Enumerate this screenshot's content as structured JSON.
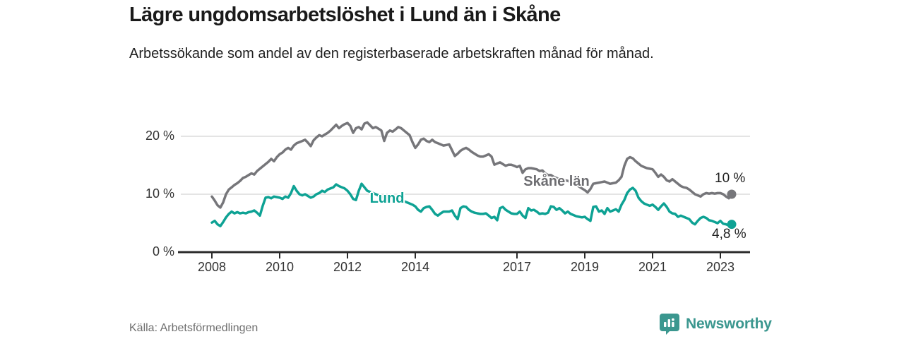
{
  "header": {
    "title": "Lägre ungdomsarbetslöshet i Lund än i Skåne",
    "subtitle": "Arbetssökande som andel av den registerbaserade arbetskraften månad för månad."
  },
  "footer": {
    "source": "Källa: Arbetsförmedlingen",
    "brand": "Newsworthy"
  },
  "colors": {
    "accent_teal": "#0ea294",
    "line_gray": "#76767a",
    "brand_teal": "#3b978f",
    "grid": "#dcdcdc",
    "axis": "#2b2b2b",
    "text_dark": "#1a1a1a",
    "text_muted": "#6e6e6e"
  },
  "chart_data": {
    "type": "line",
    "title": "Lägre ungdomsarbetslöshet i Lund än i Skåne",
    "subtitle": "Arbetssökande som andel av den registerbaserade arbetskraften månad för månad.",
    "unit": "%",
    "frequency": "monthly",
    "x_start": "2008-01",
    "x_end": "2023-05",
    "ylim": [
      0,
      24
    ],
    "grid": "horizontal",
    "legend": "direct-labels",
    "y_tick_labels": [
      "20 %",
      "10 %",
      "0 %"
    ],
    "y_tick_values": [
      20,
      10,
      0
    ],
    "x_tick_years": [
      2008,
      2010,
      2012,
      2014,
      2017,
      2019,
      2021,
      2023
    ],
    "x_tick_labels": [
      "2008",
      "2010",
      "2012",
      "2014",
      "2017",
      "2019",
      "2021",
      "2023"
    ],
    "series": [
      {
        "name": "Skåne län",
        "color": "#76767a",
        "end_label": "10 %",
        "end_value": 10,
        "values": [
          9.6,
          8.9,
          8.1,
          7.7,
          8.6,
          10.0,
          10.8,
          11.2,
          11.6,
          11.9,
          12.3,
          12.8,
          13.0,
          13.3,
          13.6,
          13.4,
          14.0,
          14.4,
          14.8,
          15.2,
          15.6,
          16.1,
          15.7,
          16.4,
          16.9,
          17.2,
          17.7,
          18.0,
          17.7,
          18.4,
          18.8,
          19.0,
          19.2,
          19.4,
          18.9,
          18.3,
          19.3,
          19.8,
          20.2,
          20.0,
          20.3,
          20.6,
          21.0,
          21.5,
          22.0,
          21.4,
          21.8,
          22.1,
          22.3,
          21.8,
          20.6,
          21.4,
          21.6,
          21.2,
          22.2,
          22.4,
          21.9,
          21.4,
          21.6,
          21.3,
          21.0,
          19.2,
          20.6,
          21.0,
          20.8,
          21.2,
          21.6,
          21.4,
          21.0,
          20.6,
          20.2,
          19.0,
          18.0,
          18.6,
          19.4,
          19.6,
          19.2,
          19.0,
          19.4,
          19.0,
          18.8,
          18.6,
          18.4,
          18.5,
          18.6,
          17.6,
          16.6,
          17.0,
          17.5,
          17.8,
          18.0,
          17.7,
          17.3,
          17.0,
          16.7,
          16.5,
          16.5,
          16.7,
          16.9,
          16.5,
          15.1,
          15.3,
          15.5,
          15.2,
          14.9,
          15.1,
          15.1,
          14.9,
          14.7,
          14.9,
          13.7,
          14.3,
          14.5,
          14.5,
          14.4,
          14.3,
          14.0,
          14.1,
          13.6,
          13.3,
          13.3,
          13.0,
          12.8,
          12.6,
          12.5,
          12.4,
          12.3,
          12.1,
          11.9,
          11.7,
          11.3,
          11.0,
          10.7,
          10.3,
          10.9,
          11.8,
          11.9,
          12.0,
          12.1,
          12.2,
          12.0,
          11.8,
          11.9,
          12.0,
          12.4,
          13.0,
          14.9,
          16.1,
          16.4,
          16.2,
          15.7,
          15.3,
          14.9,
          14.7,
          14.5,
          14.4,
          14.3,
          13.7,
          13.0,
          13.4,
          13.0,
          12.4,
          12.2,
          12.6,
          12.2,
          11.8,
          11.4,
          11.2,
          11.1,
          10.8,
          10.4,
          10.0,
          9.8,
          9.6,
          10.0,
          10.2,
          10.1,
          10.2,
          10.1,
          10.2,
          10.2,
          10.0,
          9.6,
          9.3,
          10.0
        ]
      },
      {
        "name": "Lund",
        "color": "#0ea294",
        "end_label": "4,8 %",
        "end_value": 4.8,
        "values": [
          5.1,
          5.4,
          4.8,
          4.5,
          5.2,
          6.0,
          6.6,
          7.0,
          6.7,
          6.9,
          6.7,
          6.8,
          6.7,
          6.9,
          7.0,
          7.2,
          6.8,
          6.3,
          8.0,
          9.4,
          9.5,
          9.3,
          9.6,
          9.5,
          9.4,
          9.2,
          9.6,
          9.4,
          10.2,
          11.4,
          10.6,
          10.0,
          9.8,
          10.0,
          9.7,
          9.4,
          9.6,
          10.0,
          10.2,
          10.6,
          10.4,
          10.8,
          11.0,
          11.2,
          11.7,
          11.4,
          11.2,
          11.0,
          10.6,
          10.0,
          9.2,
          9.0,
          10.6,
          11.8,
          11.2,
          10.6,
          10.4,
          10.2,
          10.0,
          9.8,
          9.6,
          9.3,
          9.2,
          9.4,
          9.5,
          9.3,
          9.1,
          8.9,
          8.8,
          8.6,
          8.4,
          8.2,
          7.9,
          7.3,
          7.0,
          7.6,
          7.8,
          7.9,
          7.3,
          6.6,
          6.3,
          6.7,
          7.0,
          7.0,
          7.0,
          7.2,
          6.3,
          5.7,
          7.6,
          7.9,
          7.8,
          7.3,
          7.0,
          6.8,
          6.7,
          6.6,
          6.6,
          6.7,
          6.3,
          5.9,
          6.1,
          5.5,
          7.6,
          7.8,
          7.3,
          7.0,
          6.7,
          6.6,
          6.6,
          7.0,
          6.3,
          5.9,
          7.6,
          7.2,
          7.3,
          7.0,
          6.6,
          6.7,
          6.6,
          6.8,
          7.9,
          7.8,
          7.3,
          7.6,
          7.2,
          6.7,
          7.0,
          6.6,
          6.4,
          6.2,
          6.1,
          6.0,
          6.1,
          5.7,
          5.4,
          7.8,
          7.9,
          7.0,
          7.2,
          6.6,
          7.6,
          7.0,
          7.2,
          7.4,
          7.0,
          8.2,
          9.0,
          10.2,
          10.8,
          11.1,
          10.6,
          9.4,
          8.8,
          8.4,
          8.2,
          8.0,
          8.2,
          7.8,
          7.3,
          7.9,
          8.4,
          7.8,
          7.0,
          6.7,
          6.6,
          6.1,
          6.3,
          6.1,
          5.9,
          5.7,
          5.1,
          4.8,
          5.4,
          5.9,
          6.1,
          5.9,
          5.5,
          5.4,
          5.2,
          5.0,
          5.4,
          4.9,
          4.8,
          4.6,
          4.8
        ]
      }
    ]
  }
}
